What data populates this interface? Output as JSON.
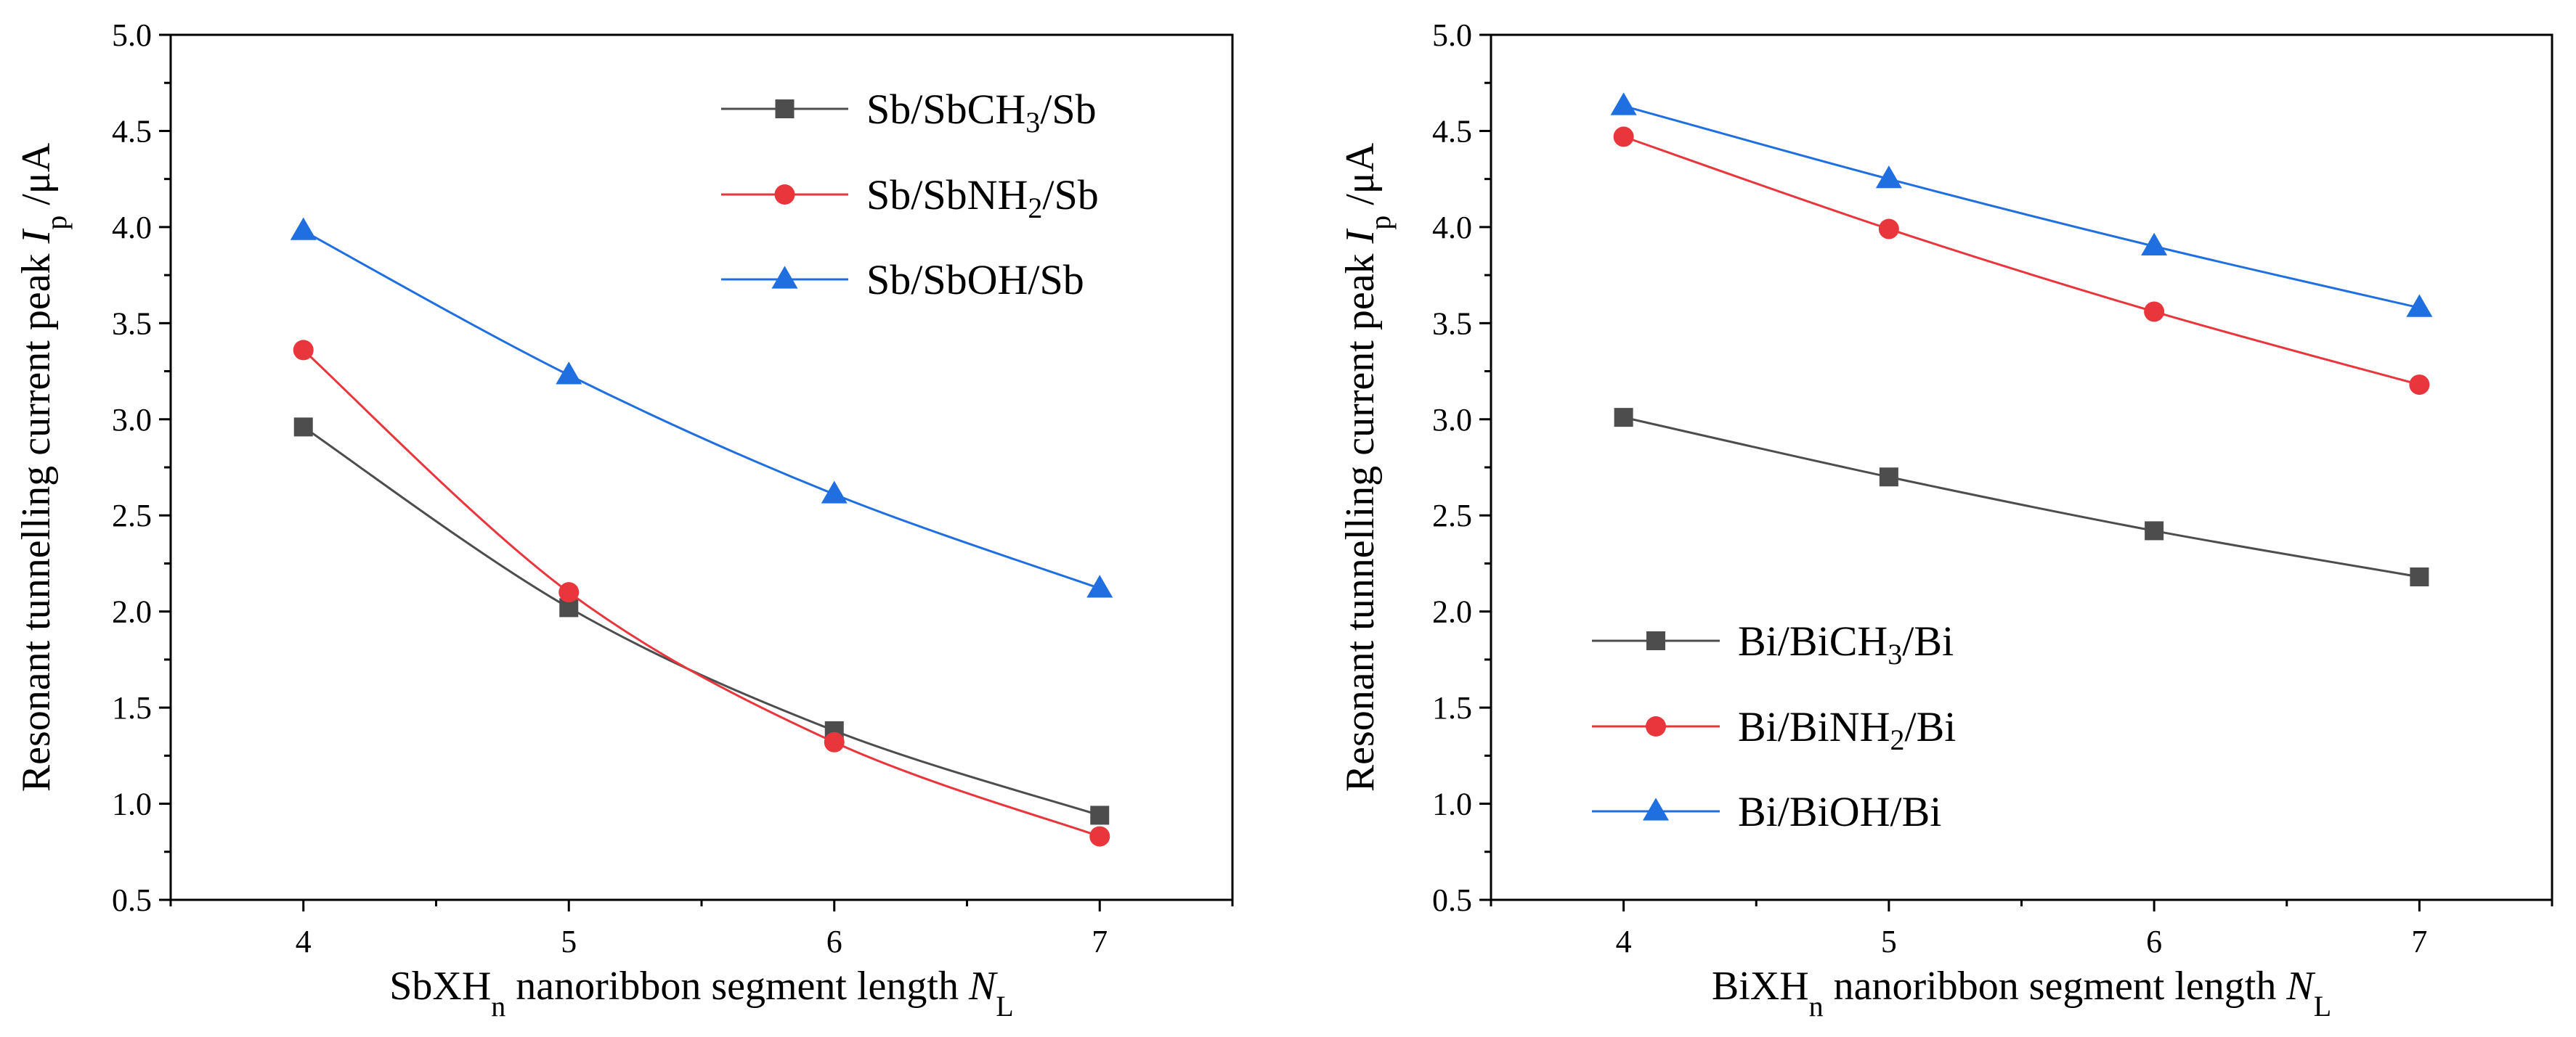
{
  "chart_data": [
    {
      "type": "line",
      "x": [
        4,
        5,
        6,
        7
      ],
      "xticks": [
        "4",
        "5",
        "6",
        "7"
      ],
      "xlim": [
        3.5,
        7.5
      ],
      "ylim": [
        0.5,
        5.0
      ],
      "yticks": [
        "0.5",
        "1.0",
        "1.5",
        "2.0",
        "2.5",
        "3.0",
        "3.5",
        "4.0",
        "4.5",
        "5.0"
      ],
      "xlabel": {
        "pre": "SbXH",
        "sub": "n",
        "mid": " nanoribbon segment length ",
        "var": "N",
        "varsub": "L"
      },
      "ylabel": {
        "pre": "Resonant tunnelling current peak ",
        "var": "I",
        "varsub": "p",
        "post": " /μA"
      },
      "legend_position": "top-right",
      "grid": false,
      "series": [
        {
          "name": "Sb/SbCH3/Sb",
          "legend": {
            "pre": "Sb/SbCH",
            "sub": "3",
            "post": "/Sb"
          },
          "marker": "square",
          "color": "#4d4d4d",
          "values": [
            2.96,
            2.02,
            1.38,
            0.94
          ]
        },
        {
          "name": "Sb/SbNH2/Sb",
          "legend": {
            "pre": "Sb/SbNH",
            "sub": "2",
            "post": "/Sb"
          },
          "marker": "circle",
          "color": "#e8363c",
          "values": [
            3.36,
            2.1,
            1.32,
            0.83
          ]
        },
        {
          "name": "Sb/SbOH/Sb",
          "legend": {
            "pre": "Sb/SbOH/Sb",
            "sub": "",
            "post": ""
          },
          "marker": "triangle",
          "color": "#1f6fe0",
          "values": [
            3.98,
            3.23,
            2.61,
            2.12
          ]
        }
      ]
    },
    {
      "type": "line",
      "x": [
        4,
        5,
        6,
        7
      ],
      "xticks": [
        "4",
        "5",
        "6",
        "7"
      ],
      "xlim": [
        3.5,
        7.5
      ],
      "ylim": [
        0.5,
        5.0
      ],
      "yticks": [
        "0.5",
        "1.0",
        "1.5",
        "2.0",
        "2.5",
        "3.0",
        "3.5",
        "4.0",
        "4.5",
        "5.0"
      ],
      "xlabel": {
        "pre": "BiXH",
        "sub": "n",
        "mid": " nanoribbon segment length ",
        "var": "N",
        "varsub": "L"
      },
      "ylabel": {
        "pre": "Resonant tunnelling current peak ",
        "var": "I",
        "varsub": "p",
        "post": " /μA"
      },
      "legend_position": "bottom-left",
      "grid": false,
      "series": [
        {
          "name": "Bi/BiCH3/Bi",
          "legend": {
            "pre": "Bi/BiCH",
            "sub": "3",
            "post": "/Bi"
          },
          "marker": "square",
          "color": "#4d4d4d",
          "values": [
            3.01,
            2.7,
            2.42,
            2.18
          ]
        },
        {
          "name": "Bi/BiNH2/Bi",
          "legend": {
            "pre": "Bi/BiNH",
            "sub": "2",
            "post": "/Bi"
          },
          "marker": "circle",
          "color": "#e8363c",
          "values": [
            4.47,
            3.99,
            3.56,
            3.18
          ]
        },
        {
          "name": "Bi/BiOH/Bi",
          "legend": {
            "pre": "Bi/BiOH/Bi",
            "sub": "",
            "post": ""
          },
          "marker": "triangle",
          "color": "#1f6fe0",
          "values": [
            4.63,
            4.25,
            3.9,
            3.58
          ]
        }
      ]
    }
  ]
}
